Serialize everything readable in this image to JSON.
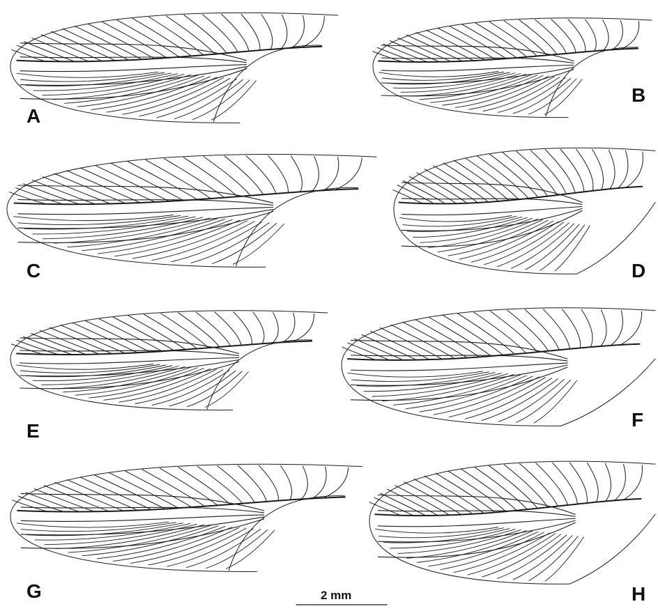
{
  "panels": [
    {
      "label": "A"
    },
    {
      "label": "B"
    },
    {
      "label": "C"
    },
    {
      "label": "D"
    },
    {
      "label": "E"
    },
    {
      "label": "F"
    },
    {
      "label": "G"
    },
    {
      "label": "H"
    }
  ],
  "scale_bar": {
    "label": "2 mm"
  }
}
